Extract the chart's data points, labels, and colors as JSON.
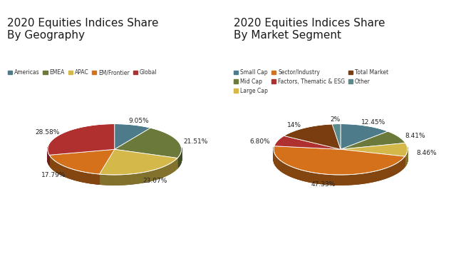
{
  "geo_title": "2020 Equities Indices Share\nBy Geography",
  "geo_labels": [
    "Americas",
    "EMEA",
    "APAC",
    "EM/Frontier",
    "Global"
  ],
  "geo_values": [
    9.05,
    21.51,
    23.07,
    17.79,
    28.58
  ],
  "geo_colors": [
    "#4d7b8a",
    "#6b7a3a",
    "#d4b84a",
    "#d4711a",
    "#b03030"
  ],
  "geo_pct_labels": [
    "9.05%",
    "21.51%",
    "23.07%",
    "17.79%",
    "28.58%"
  ],
  "seg_title": "2020 Equities Indices Share\nBy Market Segment",
  "seg_labels": [
    "Small Cap",
    "Mid Cap",
    "Large Cap",
    "Sector/Industry",
    "Factors, Thematic & ESG",
    "Total Market",
    "Other"
  ],
  "seg_values": [
    12.45,
    8.41,
    8.46,
    47.33,
    6.8,
    14.0,
    2.0
  ],
  "seg_colors": [
    "#4d7b8a",
    "#6b7a3a",
    "#d4b84a",
    "#d4711a",
    "#b03030",
    "#7a3d10",
    "#5a8a8a"
  ],
  "seg_pct_labels": [
    "12.45%",
    "8.41%",
    "8.46%",
    "47.33%",
    "6.80%",
    "14%",
    "2%"
  ],
  "background_color": "#ffffff",
  "title_color": "#1a1a1a",
  "iia_box_color": "#1a5276",
  "legend_label_color": "#333333",
  "text_fontsize": 9,
  "title_fontsize": 11
}
